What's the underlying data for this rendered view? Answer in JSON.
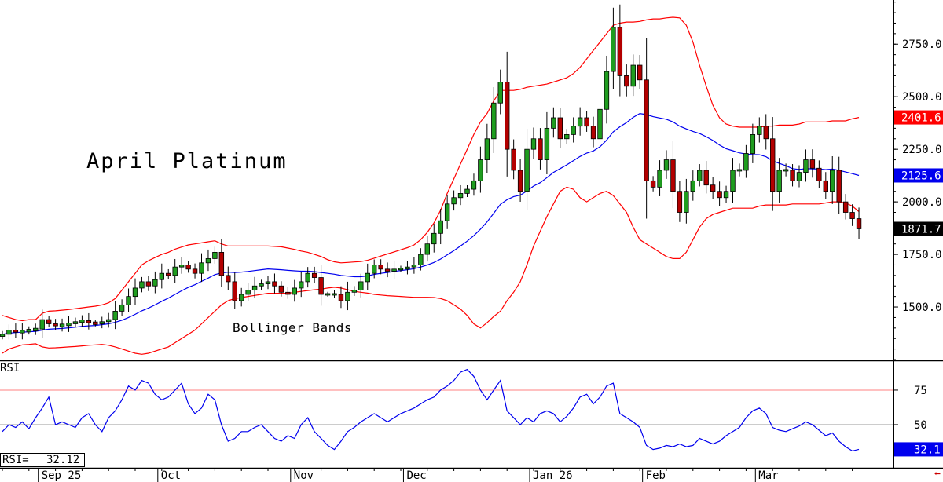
{
  "chart_data": {
    "type": "candlestick",
    "title": "April Platinum",
    "annotation": "Bollinger Bands",
    "colors": {
      "up": "#1f9d1f",
      "down": "#b30000",
      "middle_band": "#0000ee",
      "bands": "#ff0000",
      "rsi": "#0000ee"
    },
    "x_ticks": [
      {
        "label": "Sep 25",
        "index": 6
      },
      {
        "label": "Oct",
        "index": 24
      },
      {
        "label": "Nov",
        "index": 44
      },
      {
        "label": "Dec",
        "index": 61
      },
      {
        "label": "Jan 26",
        "index": 80
      },
      {
        "label": "Feb",
        "index": 97
      },
      {
        "label": "Mar",
        "index": 114
      }
    ],
    "price_axis": {
      "ticks": [
        "1500.0",
        "1750.0",
        "2000.0",
        "2250.0",
        "2500.0",
        "2750.0"
      ],
      "ylim": [
        1250,
        2960
      ]
    },
    "price_labels": [
      {
        "text": "2401.6",
        "value": 2401.6,
        "color": "#ff0000"
      },
      {
        "text": "2125.6",
        "value": 2125.6,
        "color": "#0000ee"
      },
      {
        "text": "1871.7",
        "value": 1871.7,
        "color": "#000000"
      }
    ],
    "close": [
      1370,
      1390,
      1380,
      1385,
      1390,
      1395,
      1440,
      1420,
      1410,
      1415,
      1420,
      1430,
      1435,
      1425,
      1420,
      1430,
      1440,
      1480,
      1510,
      1550,
      1590,
      1620,
      1600,
      1630,
      1660,
      1650,
      1690,
      1700,
      1680,
      1660,
      1710,
      1730,
      1760,
      1650,
      1620,
      1530,
      1560,
      1580,
      1600,
      1610,
      1620,
      1600,
      1570,
      1560,
      1590,
      1620,
      1660,
      1640,
      1560,
      1560,
      1560,
      1530,
      1570,
      1580,
      1620,
      1660,
      1700,
      1680,
      1670,
      1680,
      1680,
      1690,
      1700,
      1750,
      1800,
      1850,
      1910,
      1990,
      2020,
      2040,
      2060,
      2100,
      2200,
      2300,
      2470,
      2570,
      2250,
      2150,
      2050,
      2250,
      2300,
      2200,
      2350,
      2400,
      2300,
      2320,
      2360,
      2400,
      2360,
      2300,
      2440,
      2620,
      2830,
      2600,
      2550,
      2650,
      2580,
      2100,
      2070,
      2150,
      2200,
      2050,
      1950,
      2050,
      2100,
      2150,
      2080,
      2050,
      2020,
      2050,
      2150,
      2150,
      2230,
      2320,
      2360,
      2300,
      2050,
      2150,
      2150,
      2100,
      2140,
      2200,
      2160,
      2100,
      2050,
      2150,
      2000,
      1950,
      1920,
      1871.7
    ],
    "middle_band": [
      1370,
      1375,
      1378,
      1380,
      1382,
      1384,
      1390,
      1394,
      1396,
      1398,
      1401,
      1404,
      1408,
      1410,
      1412,
      1416,
      1420,
      1427,
      1437,
      1450,
      1465,
      1482,
      1495,
      1510,
      1527,
      1542,
      1560,
      1577,
      1593,
      1606,
      1622,
      1637,
      1654,
      1662,
      1666,
      1664,
      1666,
      1669,
      1673,
      1677,
      1681,
      1679,
      1677,
      1674,
      1672,
      1670,
      1670,
      1668,
      1664,
      1660,
      1656,
      1650,
      1647,
      1644,
      1644,
      1648,
      1655,
      1660,
      1664,
      1669,
      1673,
      1677,
      1682,
      1690,
      1700,
      1712,
      1728,
      1748,
      1768,
      1790,
      1813,
      1839,
      1870,
      1905,
      1946,
      1988,
      2010,
      2025,
      2032,
      2052,
      2075,
      2091,
      2115,
      2140,
      2158,
      2176,
      2196,
      2216,
      2232,
      2242,
      2262,
      2293,
      2333,
      2357,
      2377,
      2402,
      2420,
      2415,
      2405,
      2399,
      2393,
      2380,
      2360,
      2347,
      2335,
      2325,
      2310,
      2292,
      2270,
      2253,
      2243,
      2233,
      2227,
      2225,
      2224,
      2215,
      2195,
      2183,
      2172,
      2158,
      2154,
      2158,
      2157,
      2156,
      2153,
      2156,
      2150,
      2142,
      2134,
      2125.6
    ],
    "upper_band": [
      1460,
      1450,
      1440,
      1435,
      1440,
      1440,
      1470,
      1480,
      1482,
      1485,
      1488,
      1492,
      1496,
      1500,
      1504,
      1510,
      1520,
      1540,
      1580,
      1620,
      1660,
      1700,
      1720,
      1735,
      1750,
      1760,
      1775,
      1785,
      1795,
      1800,
      1805,
      1810,
      1815,
      1800,
      1790,
      1790,
      1790,
      1790,
      1790,
      1790,
      1790,
      1788,
      1786,
      1780,
      1774,
      1766,
      1760,
      1750,
      1740,
      1725,
      1715,
      1710,
      1712,
      1714,
      1716,
      1722,
      1732,
      1742,
      1752,
      1762,
      1772,
      1782,
      1795,
      1820,
      1855,
      1900,
      1960,
      2040,
      2110,
      2180,
      2250,
      2320,
      2380,
      2420,
      2480,
      2530,
      2530,
      2530,
      2535,
      2545,
      2550,
      2555,
      2560,
      2570,
      2580,
      2590,
      2610,
      2640,
      2680,
      2720,
      2760,
      2800,
      2840,
      2850,
      2855,
      2855,
      2858,
      2865,
      2870,
      2870,
      2875,
      2878,
      2875,
      2840,
      2760,
      2650,
      2550,
      2460,
      2400,
      2370,
      2360,
      2355,
      2355,
      2355,
      2355,
      2360,
      2360,
      2365,
      2365,
      2365,
      2370,
      2380,
      2380,
      2380,
      2380,
      2385,
      2385,
      2385,
      2395,
      2401.6
    ],
    "lower_band": [
      1280,
      1300,
      1310,
      1320,
      1322,
      1325,
      1310,
      1305,
      1306,
      1308,
      1310,
      1312,
      1315,
      1318,
      1320,
      1322,
      1318,
      1310,
      1300,
      1290,
      1280,
      1275,
      1280,
      1290,
      1300,
      1310,
      1330,
      1350,
      1370,
      1390,
      1420,
      1450,
      1480,
      1510,
      1530,
      1540,
      1545,
      1550,
      1555,
      1560,
      1565,
      1565,
      1565,
      1565,
      1570,
      1574,
      1578,
      1582,
      1585,
      1590,
      1594,
      1590,
      1582,
      1574,
      1570,
      1566,
      1560,
      1557,
      1554,
      1552,
      1550,
      1548,
      1546,
      1546,
      1546,
      1545,
      1540,
      1530,
      1510,
      1490,
      1460,
      1420,
      1400,
      1425,
      1455,
      1480,
      1530,
      1570,
      1620,
      1700,
      1790,
      1860,
      1930,
      1990,
      2050,
      2070,
      2060,
      2020,
      2000,
      2020,
      2040,
      2050,
      2030,
      1990,
      1950,
      1880,
      1820,
      1800,
      1780,
      1760,
      1740,
      1730,
      1730,
      1760,
      1820,
      1880,
      1920,
      1940,
      1950,
      1960,
      1970,
      1970,
      1970,
      1970,
      1980,
      1985,
      1985,
      1985,
      1985,
      1990,
      1990,
      1990,
      1990,
      1990,
      1995,
      2000,
      2000,
      1995,
      1980,
      1953.8
    ],
    "rsi": {
      "label": "RSI",
      "readout_label": "RSI=",
      "current": "32.12",
      "axis_label": "32.1",
      "ticks": [
        "50",
        "75"
      ],
      "levels": [
        50,
        75
      ],
      "values": [
        45,
        50,
        48,
        52,
        47,
        55,
        62,
        70,
        50,
        52,
        50,
        48,
        55,
        58,
        50,
        45,
        55,
        60,
        68,
        78,
        75,
        82,
        80,
        72,
        68,
        70,
        75,
        80,
        65,
        58,
        62,
        72,
        68,
        50,
        38,
        40,
        45,
        45,
        48,
        50,
        45,
        40,
        38,
        42,
        40,
        50,
        55,
        45,
        40,
        35,
        32,
        38,
        45,
        48,
        52,
        55,
        58,
        55,
        52,
        55,
        58,
        60,
        62,
        65,
        68,
        70,
        75,
        78,
        82,
        88,
        90,
        85,
        75,
        68,
        75,
        82,
        60,
        55,
        50,
        55,
        52,
        58,
        60,
        58,
        52,
        56,
        62,
        70,
        72,
        65,
        70,
        78,
        80,
        58,
        55,
        52,
        48,
        35,
        32,
        33,
        35,
        34,
        36,
        34,
        35,
        40,
        38,
        36,
        38,
        42,
        45,
        48,
        55,
        60,
        62,
        58,
        48,
        46,
        45,
        47,
        49,
        52,
        50,
        46,
        42,
        44,
        38,
        34,
        31,
        32.12
      ]
    }
  }
}
